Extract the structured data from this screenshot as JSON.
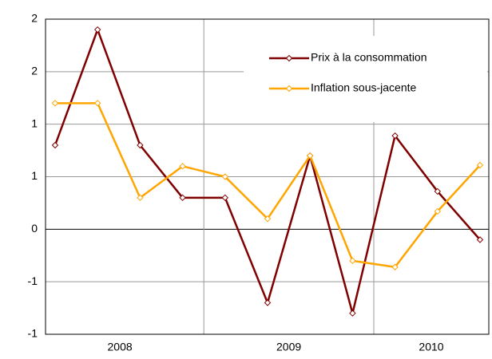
{
  "chart_data": {
    "type": "line",
    "categories": [
      null,
      null,
      null,
      null,
      null,
      null,
      null,
      null,
      null,
      null,
      null
    ],
    "year_labels": [
      "2008",
      "2009",
      "2010"
    ],
    "series": [
      {
        "name": "Prix à la consommation",
        "color": "#800000",
        "values": [
          0.8,
          1.9,
          0.8,
          0.3,
          0.3,
          -0.7,
          0.7,
          -0.8,
          0.89,
          0.36,
          -0.1
        ]
      },
      {
        "name": "Inflation sous-jacente",
        "color": "#ffa500",
        "values": [
          1.2,
          1.2,
          0.3,
          0.6,
          0.5,
          0.1,
          0.7,
          -0.3,
          -0.36,
          0.17,
          0.61
        ]
      }
    ],
    "ylim": [
      -1,
      2
    ],
    "yticks": [
      {
        "value": -1,
        "label": "-1"
      },
      {
        "value": -0.5,
        "label": "-1"
      },
      0,
      {
        "value": 0.5,
        "label": "1"
      },
      1,
      {
        "value": 1.5,
        "label": "2"
      },
      2
    ],
    "grid": true,
    "legend": "upper right"
  }
}
